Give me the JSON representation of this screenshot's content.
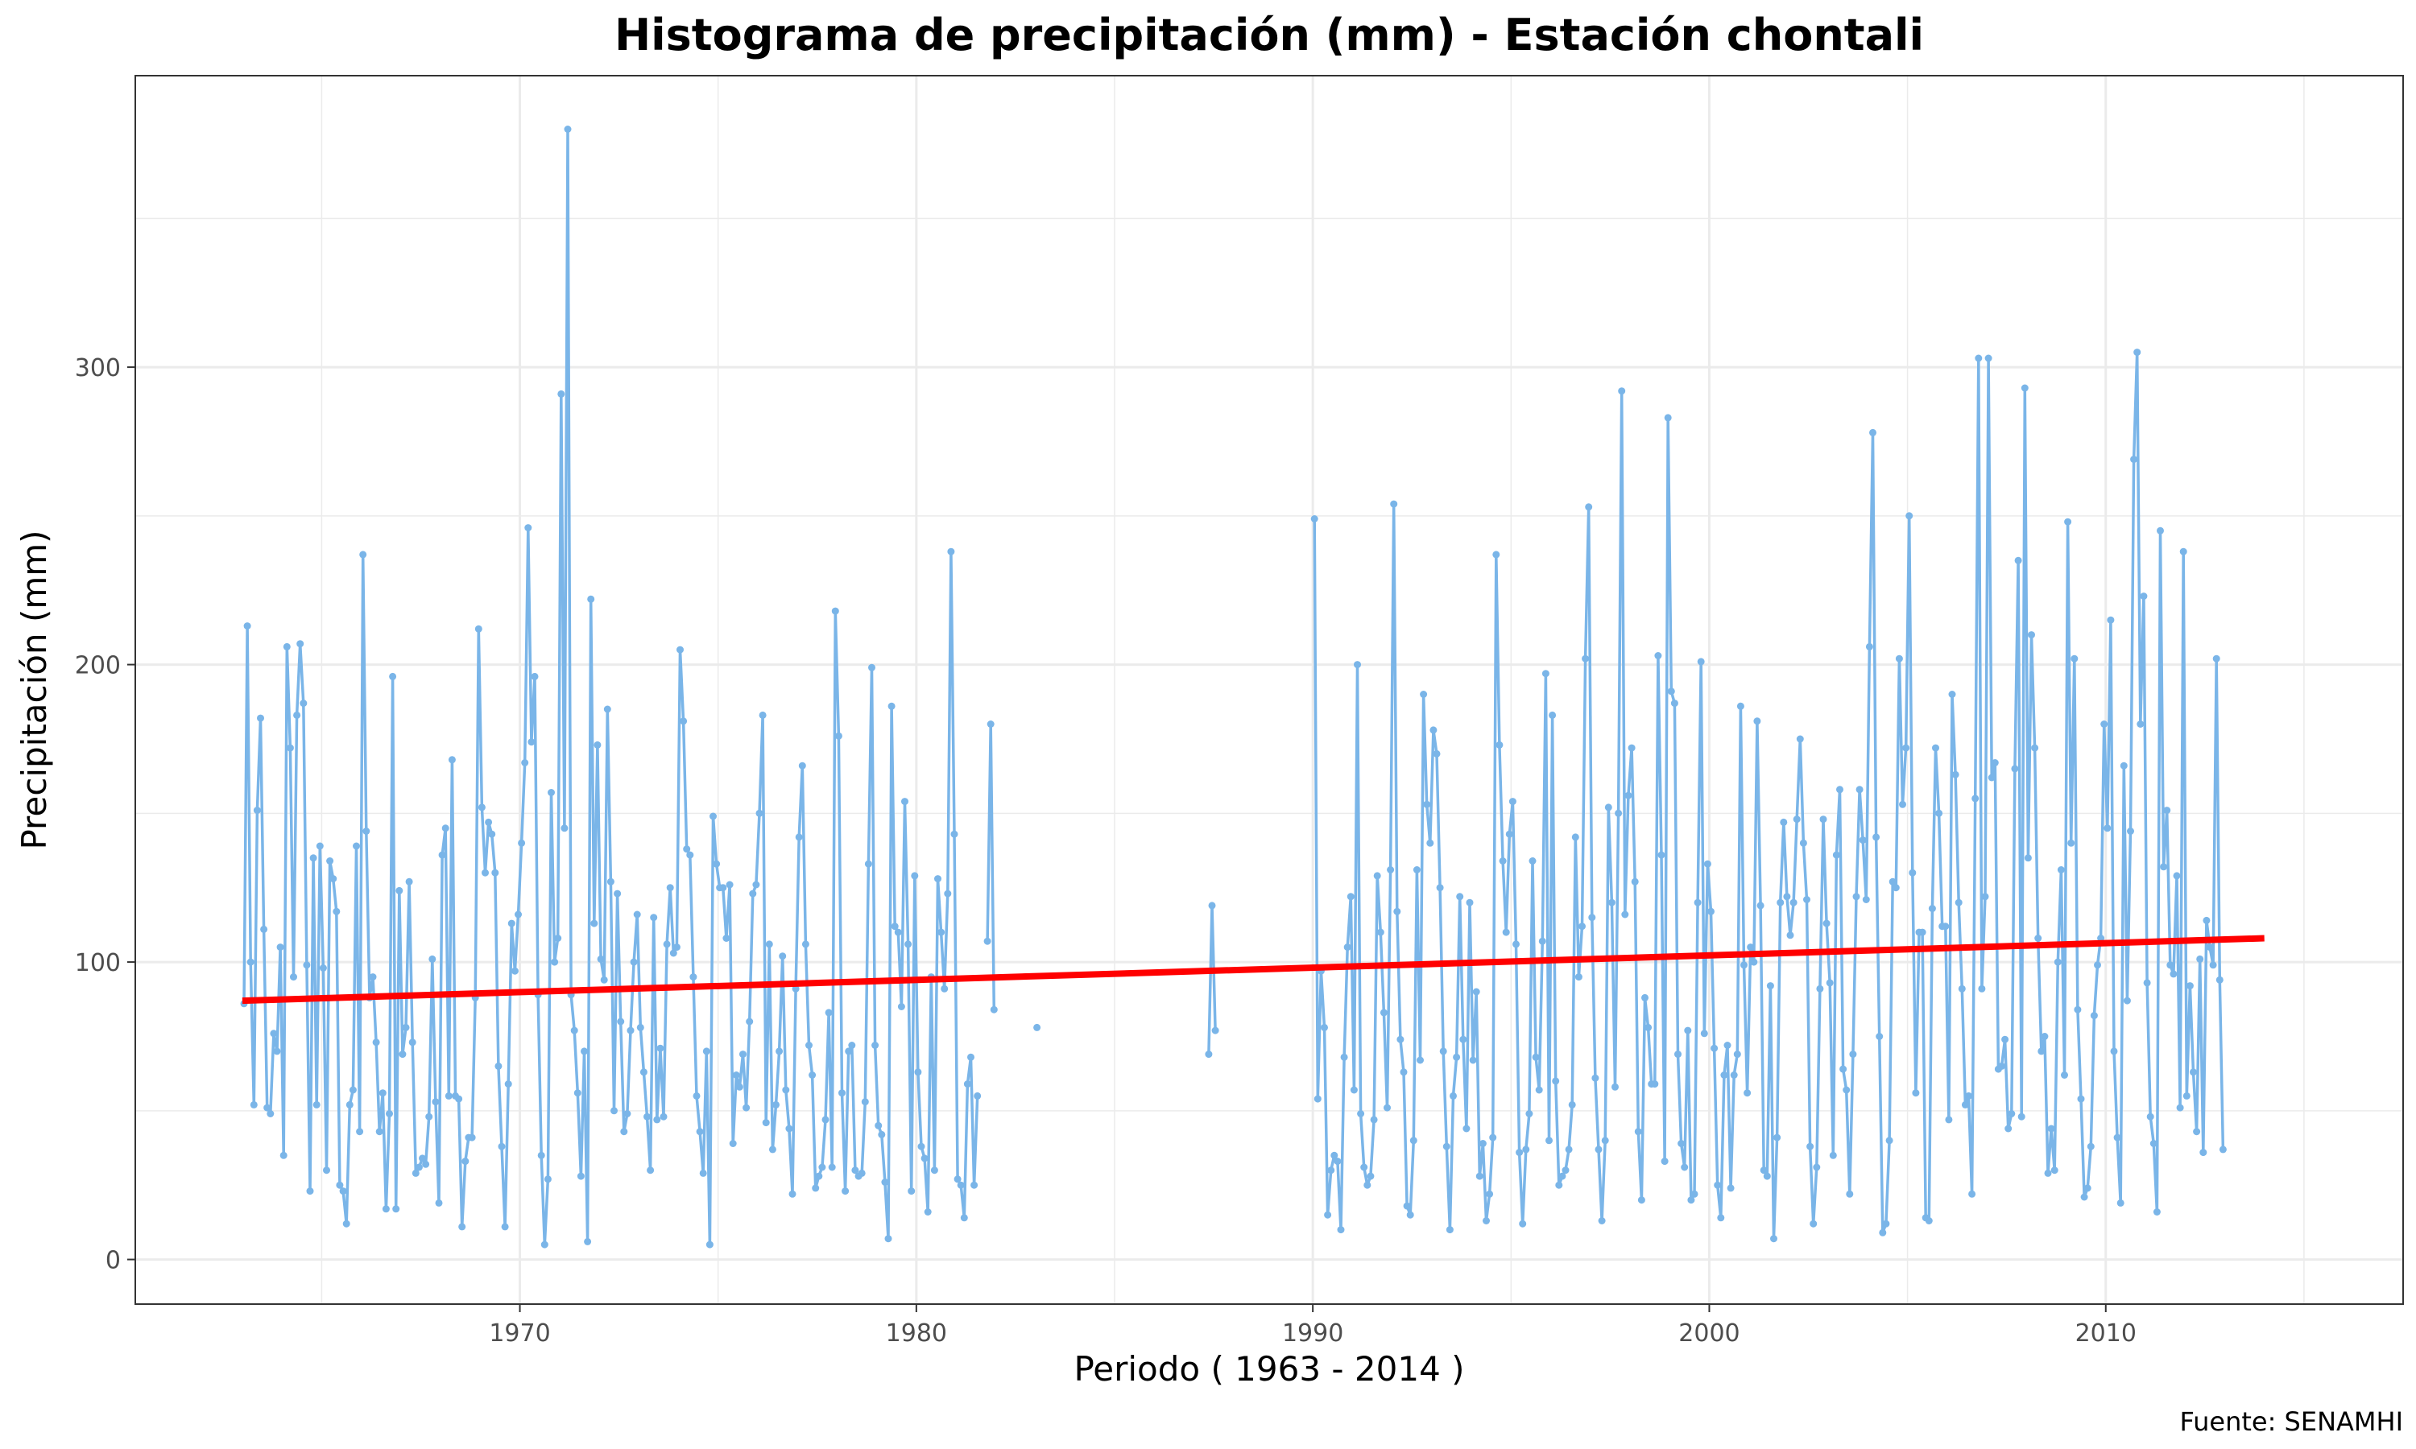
{
  "chart_data": {
    "type": "line",
    "title": "Histograma de precipitación (mm) - Estación chontali",
    "xlabel": "Periodo ( 1963 - 2014 )",
    "ylabel": "Precipitación (mm)",
    "caption": "Fuente: SENAMHI",
    "xlim": [
      1960.3,
      2017.5
    ],
    "ylim": [
      -15,
      398
    ],
    "x_ticks": [
      1970,
      1980,
      1990,
      2000,
      2010
    ],
    "y_ticks": [
      0,
      100,
      200,
      300
    ],
    "grid": true,
    "colors": {
      "series": "#7ab5e8",
      "trend": "#ff0000",
      "grid": "#ebebeb",
      "panel_border": "#333333",
      "tick": "#333333"
    },
    "series": [
      {
        "values_by_year": [
          [
            1963,
            [
              86,
              213,
              100,
              52,
              151,
              182,
              111,
              51,
              49,
              76,
              70,
              105
            ]
          ],
          [
            1964,
            [
              35,
              206,
              172,
              95,
              183,
              207,
              187,
              99,
              23,
              135,
              52,
              139
            ]
          ],
          [
            1965,
            [
              98,
              30,
              134,
              128,
              117,
              25,
              23,
              12,
              52,
              57,
              139,
              43
            ]
          ],
          [
            1966,
            [
              237,
              144,
              88,
              95,
              73,
              43,
              56,
              17,
              49,
              196,
              17,
              124
            ]
          ],
          [
            1967,
            [
              69,
              78,
              127,
              73,
              29,
              31,
              34,
              32,
              48,
              101,
              53,
              19
            ]
          ],
          [
            1968,
            [
              136,
              145,
              55,
              168,
              55,
              54,
              11,
              33,
              41,
              41,
              88,
              212
            ]
          ],
          [
            1969,
            [
              152,
              130,
              147,
              143,
              130,
              65,
              38,
              11,
              59,
              113,
              97,
              116
            ]
          ],
          [
            1970,
            [
              140,
              167,
              246,
              174,
              196,
              89,
              35,
              5,
              27,
              157,
              100,
              108
            ]
          ],
          [
            1971,
            [
              291,
              145,
              380,
              89,
              77,
              56,
              28,
              70,
              6,
              222,
              113,
              173
            ]
          ],
          [
            1972,
            [
              101,
              94,
              185,
              127,
              50,
              123,
              80,
              43,
              49,
              77,
              100,
              116
            ]
          ],
          [
            1973,
            [
              78,
              63,
              48,
              30,
              115,
              47,
              71,
              48,
              106,
              125,
              103,
              105
            ]
          ],
          [
            1974,
            [
              205,
              181,
              138,
              136,
              95,
              55,
              43,
              29,
              70,
              5,
              149,
              133
            ]
          ],
          [
            1975,
            [
              125,
              125,
              108,
              126,
              39,
              62,
              58,
              69,
              51,
              80,
              123,
              126
            ]
          ],
          [
            1976,
            [
              150,
              183,
              46,
              106,
              37,
              52,
              70,
              102,
              57,
              44,
              22,
              91
            ]
          ],
          [
            1977,
            [
              142,
              166,
              106,
              72,
              62,
              24,
              28,
              31,
              47,
              83,
              31,
              218
            ]
          ],
          [
            1978,
            [
              176,
              56,
              23,
              70,
              72,
              30,
              28,
              29,
              53,
              133,
              199,
              72
            ]
          ],
          [
            1979,
            [
              45,
              42,
              26,
              7,
              186,
              112,
              110,
              85,
              154,
              106,
              23,
              129
            ]
          ],
          [
            1980,
            [
              63,
              38,
              34,
              16,
              95,
              30,
              128,
              110,
              91,
              123,
              238,
              143
            ]
          ],
          [
            1981,
            [
              27,
              25,
              14,
              59,
              68,
              25,
              55,
              null,
              null,
              107,
              180,
              84
            ]
          ],
          [
            1982,
            [
              null,
              null,
              null,
              null,
              null,
              null,
              null,
              null,
              null,
              null,
              null,
              null
            ]
          ],
          [
            1983,
            [
              78,
              null,
              null,
              null,
              null,
              null,
              null,
              null,
              null,
              null,
              null,
              null
            ]
          ],
          [
            1987,
            [
              null,
              null,
              null,
              null,
              69,
              119,
              77,
              null,
              null,
              null,
              null,
              null
            ]
          ],
          [
            1990,
            [
              249,
              54,
              97,
              78,
              15,
              30,
              35,
              33,
              10,
              68,
              105,
              122
            ]
          ],
          [
            1991,
            [
              57,
              200,
              49,
              31,
              25,
              28,
              47,
              129,
              110,
              83,
              51,
              131
            ]
          ],
          [
            1992,
            [
              254,
              117,
              74,
              63,
              18,
              15,
              40,
              131,
              67,
              190,
              153,
              140
            ]
          ],
          [
            1993,
            [
              178,
              170,
              125,
              70,
              38,
              10,
              55,
              68,
              122,
              74,
              44,
              120
            ]
          ],
          [
            1994,
            [
              67,
              90,
              28,
              39,
              13,
              22,
              41,
              237,
              173,
              134,
              110,
              143
            ]
          ],
          [
            1995,
            [
              154,
              106,
              36,
              12,
              37,
              49,
              134,
              68,
              57,
              107,
              197,
              40
            ]
          ],
          [
            1996,
            [
              183,
              60,
              25,
              28,
              30,
              37,
              52,
              142,
              95,
              112,
              202,
              253
            ]
          ],
          [
            1997,
            [
              115,
              61,
              37,
              13,
              40,
              152,
              120,
              58,
              150,
              292,
              116,
              156
            ]
          ],
          [
            1998,
            [
              172,
              127,
              43,
              20,
              88,
              78,
              59,
              59,
              203,
              136,
              33,
              283
            ]
          ],
          [
            1999,
            [
              191,
              187,
              69,
              39,
              31,
              77,
              20,
              22,
              120,
              201,
              76,
              133
            ]
          ],
          [
            2000,
            [
              117,
              71,
              25,
              14,
              62,
              72,
              24,
              62,
              69,
              186,
              99,
              56
            ]
          ],
          [
            2001,
            [
              105,
              100,
              181,
              119,
              30,
              28,
              92,
              7,
              41,
              120,
              147,
              122
            ]
          ],
          [
            2002,
            [
              109,
              120,
              148,
              175,
              140,
              121,
              38,
              12,
              31,
              91,
              148,
              113
            ]
          ],
          [
            2003,
            [
              93,
              35,
              136,
              158,
              64,
              57,
              22,
              69,
              122,
              158,
              141,
              121
            ]
          ],
          [
            2004,
            [
              206,
              278,
              142,
              75,
              9,
              12,
              40,
              127,
              125,
              202,
              153,
              172
            ]
          ],
          [
            2005,
            [
              250,
              130,
              56,
              110,
              110,
              14,
              13,
              118,
              172,
              150,
              112,
              112
            ]
          ],
          [
            2006,
            [
              47,
              190,
              163,
              120,
              91,
              52,
              55,
              22,
              155,
              303,
              91,
              122
            ]
          ],
          [
            2007,
            [
              303,
              162,
              167,
              64,
              65,
              74,
              44,
              49,
              165,
              235,
              48,
              293
            ]
          ],
          [
            2008,
            [
              135,
              210,
              172,
              108,
              70,
              75,
              29,
              44,
              30,
              100,
              131,
              62
            ]
          ],
          [
            2009,
            [
              248,
              140,
              202,
              84,
              54,
              21,
              24,
              38,
              82,
              99,
              108,
              180
            ]
          ],
          [
            2010,
            [
              145,
              215,
              70,
              41,
              19,
              166,
              87,
              144,
              269,
              305,
              180,
              223
            ]
          ],
          [
            2011,
            [
              93,
              48,
              39,
              16,
              245,
              132,
              151,
              99,
              96,
              129,
              51,
              238
            ]
          ],
          [
            2012,
            [
              55,
              92,
              63,
              43,
              101,
              36,
              114,
              105,
              99,
              202,
              94,
              37
            ]
          ]
        ]
      }
    ],
    "trend": {
      "x": [
        1963,
        2014
      ],
      "y": [
        87,
        108
      ]
    }
  }
}
